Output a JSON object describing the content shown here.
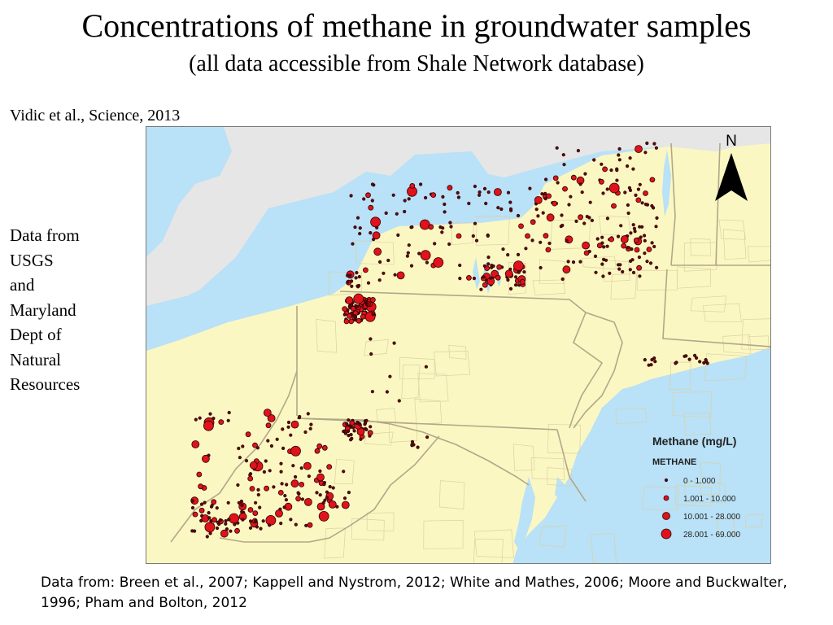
{
  "title": "Concentrations of methane in groundwater samples",
  "subtitle": "(all data accessible from Shale Network database)",
  "citation": "Vidic et al., Science, 2013",
  "source_note": [
    "Data from",
    "USGS",
    "and",
    "Maryland",
    "Dept of",
    "Natural",
    "Resources"
  ],
  "footer": "Data from: Breen et al., 2007; Kappell and Nystrom, 2012; White and Mathes, 2006; Moore and Buckwalter, 1996; Pham and Bolton, 2012",
  "map": {
    "north_label": "N",
    "legend": {
      "title": "Methane (mg/L)",
      "field": "METHANE",
      "classes": [
        {
          "label": "0 - 1.000",
          "size_class": 1
        },
        {
          "label": "1.001 - 10.000",
          "size_class": 2
        },
        {
          "label": "10.001 - 28.000",
          "size_class": 3
        },
        {
          "label": "28.001 - 69.000",
          "size_class": 4
        }
      ]
    },
    "colors": {
      "land": "#fbf7c2",
      "water": "#b9e1f7",
      "outside": "#e6e6e6",
      "state_border": "#b2a78a",
      "county_border": "#d9d2a6",
      "marker_fill": "#e0121b",
      "marker_small": "#5a0a10",
      "marker_stroke": "#2a0000"
    }
  }
}
